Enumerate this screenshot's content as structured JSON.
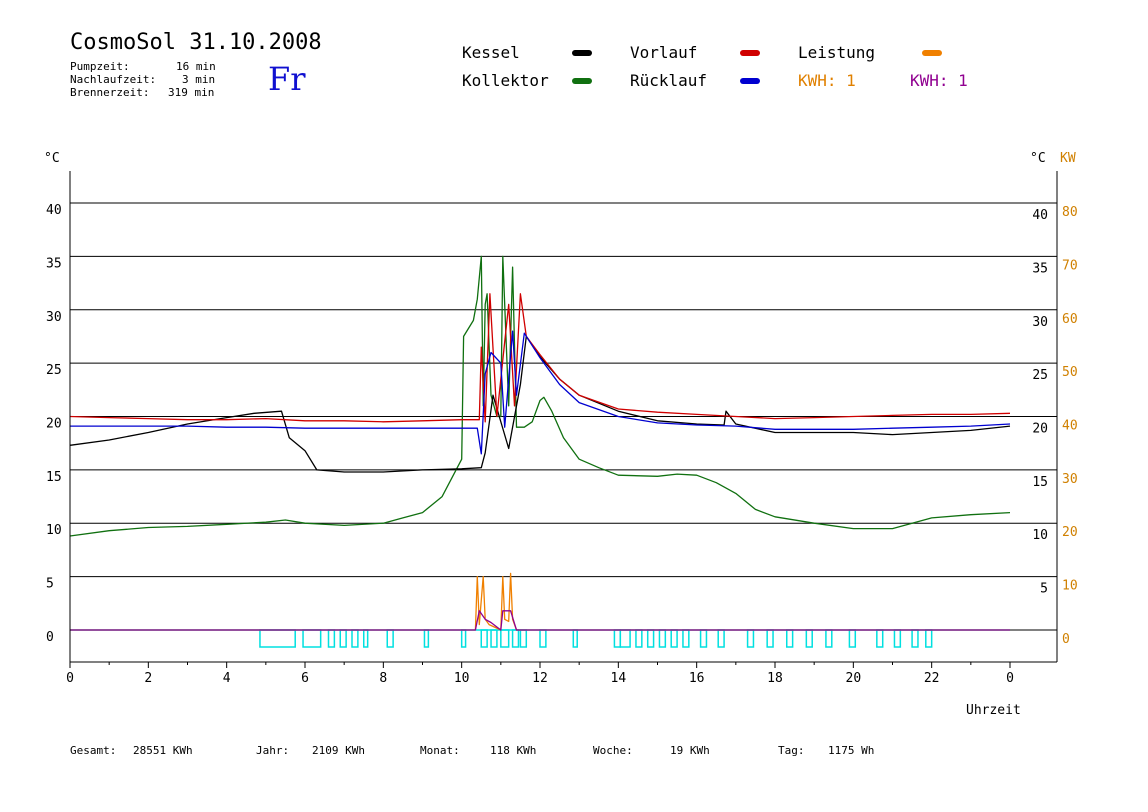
{
  "header": {
    "title": "CosmoSol 31.10.2008",
    "day": "Fr",
    "info": [
      {
        "label": "Pumpzeit:",
        "value": "16 min"
      },
      {
        "label": "Nachlaufzeit:",
        "value": "3 min"
      },
      {
        "label": "Brennerzeit:",
        "value": "319 min"
      }
    ]
  },
  "legend": {
    "kessel": "Kessel",
    "kollektor": "Kollektor",
    "vorlauf": "Vorlauf",
    "ruecklauf": "Rücklauf",
    "leistung": "Leistung",
    "kwh1": "KWH: 1",
    "kwh2": "KWH: 1"
  },
  "colors": {
    "kessel": "#000000",
    "kollektor": "#107010",
    "vorlauf": "#d00000",
    "ruecklauf": "#0000d0",
    "leistung": "#f08000",
    "kwh2": "#900090",
    "pump": "#00e0e0",
    "kw_axis": "#d08000"
  },
  "footer": [
    {
      "label": "Gesamt:",
      "value": "28551 KWh"
    },
    {
      "label": "Jahr:",
      "value": "2109 KWh"
    },
    {
      "label": "Monat:",
      "value": "118 KWh"
    },
    {
      "label": "Woche:",
      "value": "19 KWh"
    },
    {
      "label": "Tag:",
      "value": "1175 Wh"
    }
  ],
  "chart_data": {
    "type": "line",
    "xlabel": "Uhrzeit",
    "ylabel_left": "°C",
    "ylabel_right": "°C",
    "ylabel_right2": "KW",
    "xlim": [
      0,
      24
    ],
    "ylim": [
      -3,
      43
    ],
    "x_ticks": [
      "0",
      "2",
      "4",
      "6",
      "8",
      "10",
      "12",
      "14",
      "16",
      "18",
      "20",
      "22",
      "0"
    ],
    "y_ticks_left": [
      0,
      5,
      10,
      15,
      20,
      25,
      30,
      35,
      40
    ],
    "y_ticks_right": [
      5,
      10,
      15,
      20,
      25,
      30,
      35,
      40
    ],
    "y_ticks_kw": [
      0,
      10,
      20,
      30,
      40,
      50,
      60,
      70,
      80
    ],
    "grid": true,
    "series": [
      {
        "name": "Kessel",
        "key": "kessel",
        "points": [
          [
            0,
            17.3
          ],
          [
            1,
            17.8
          ],
          [
            2,
            18.5
          ],
          [
            3,
            19.3
          ],
          [
            4,
            19.9
          ],
          [
            4.7,
            20.3
          ],
          [
            5.4,
            20.5
          ],
          [
            5.6,
            18.0
          ],
          [
            6.0,
            16.8
          ],
          [
            6.3,
            15.0
          ],
          [
            7,
            14.8
          ],
          [
            8,
            14.8
          ],
          [
            9,
            15.0
          ],
          [
            10,
            15.1
          ],
          [
            10.5,
            15.2
          ],
          [
            10.6,
            16.6
          ],
          [
            10.8,
            22.0
          ],
          [
            11.2,
            17.0
          ],
          [
            11.5,
            23.0
          ],
          [
            11.65,
            27.5
          ],
          [
            12,
            25.6
          ],
          [
            12.5,
            23.5
          ],
          [
            13,
            22.0
          ],
          [
            14,
            20.5
          ],
          [
            15,
            19.6
          ],
          [
            16,
            19.3
          ],
          [
            16.7,
            19.2
          ],
          [
            16.75,
            20.5
          ],
          [
            17,
            19.3
          ],
          [
            18,
            18.5
          ],
          [
            19,
            18.5
          ],
          [
            20,
            18.5
          ],
          [
            21,
            18.3
          ],
          [
            22,
            18.5
          ],
          [
            23,
            18.7
          ],
          [
            24,
            19.1
          ]
        ]
      },
      {
        "name": "Vorlauf",
        "key": "vorlauf",
        "points": [
          [
            0,
            20.0
          ],
          [
            1,
            19.9
          ],
          [
            2,
            19.8
          ],
          [
            3,
            19.7
          ],
          [
            4,
            19.7
          ],
          [
            5,
            19.8
          ],
          [
            6,
            19.6
          ],
          [
            7,
            19.6
          ],
          [
            8,
            19.5
          ],
          [
            9,
            19.6
          ],
          [
            10,
            19.7
          ],
          [
            10.45,
            19.7
          ],
          [
            10.5,
            26.5
          ],
          [
            10.6,
            19.5
          ],
          [
            10.72,
            31.5
          ],
          [
            10.9,
            20.0
          ],
          [
            11.1,
            27.0
          ],
          [
            11.2,
            30.5
          ],
          [
            11.35,
            21.0
          ],
          [
            11.5,
            31.5
          ],
          [
            11.65,
            27.5
          ],
          [
            12,
            25.8
          ],
          [
            12.5,
            23.5
          ],
          [
            13,
            22.0
          ],
          [
            14,
            20.7
          ],
          [
            15,
            20.4
          ],
          [
            16,
            20.2
          ],
          [
            17,
            20.0
          ],
          [
            18,
            19.8
          ],
          [
            19,
            19.9
          ],
          [
            20,
            20.0
          ],
          [
            21,
            20.1
          ],
          [
            22,
            20.2
          ],
          [
            23,
            20.2
          ],
          [
            24,
            20.3
          ]
        ]
      },
      {
        "name": "Rücklauf",
        "key": "ruecklauf",
        "points": [
          [
            0,
            19.1
          ],
          [
            1,
            19.1
          ],
          [
            2,
            19.1
          ],
          [
            3,
            19.1
          ],
          [
            4,
            19.0
          ],
          [
            5,
            19.0
          ],
          [
            6,
            18.9
          ],
          [
            7,
            18.9
          ],
          [
            8,
            18.9
          ],
          [
            9,
            18.9
          ],
          [
            10,
            18.9
          ],
          [
            10.4,
            18.9
          ],
          [
            10.5,
            16.5
          ],
          [
            10.6,
            24.0
          ],
          [
            10.75,
            26.0
          ],
          [
            11.0,
            25.0
          ],
          [
            11.1,
            19.0
          ],
          [
            11.3,
            28.0
          ],
          [
            11.4,
            22.0
          ],
          [
            11.6,
            27.8
          ],
          [
            12,
            25.5
          ],
          [
            12.5,
            23.0
          ],
          [
            13,
            21.3
          ],
          [
            14,
            20.0
          ],
          [
            15,
            19.4
          ],
          [
            16,
            19.2
          ],
          [
            17,
            19.1
          ],
          [
            18,
            18.8
          ],
          [
            19,
            18.8
          ],
          [
            20,
            18.8
          ],
          [
            21,
            18.9
          ],
          [
            22,
            19.0
          ],
          [
            23,
            19.1
          ],
          [
            24,
            19.3
          ]
        ]
      },
      {
        "name": "Kollektor",
        "key": "kollektor",
        "points": [
          [
            0,
            8.8
          ],
          [
            1,
            9.3
          ],
          [
            2,
            9.6
          ],
          [
            3,
            9.7
          ],
          [
            4,
            9.9
          ],
          [
            5,
            10.1
          ],
          [
            5.5,
            10.3
          ],
          [
            6,
            10.0
          ],
          [
            7,
            9.8
          ],
          [
            8,
            10.0
          ],
          [
            8.5,
            10.5
          ],
          [
            9,
            11.0
          ],
          [
            9.5,
            12.5
          ],
          [
            10,
            16.0
          ],
          [
            10.05,
            27.5
          ],
          [
            10.3,
            29.0
          ],
          [
            10.4,
            31.0
          ],
          [
            10.5,
            35.0
          ],
          [
            10.55,
            21.0
          ],
          [
            10.6,
            30.5
          ],
          [
            10.65,
            31.5
          ],
          [
            10.75,
            22.0
          ],
          [
            10.9,
            20.0
          ],
          [
            11.0,
            20.0
          ],
          [
            11.05,
            35.0
          ],
          [
            11.2,
            21.0
          ],
          [
            11.3,
            34.0
          ],
          [
            11.4,
            19.0
          ],
          [
            11.6,
            19.0
          ],
          [
            11.8,
            19.5
          ],
          [
            12.0,
            21.5
          ],
          [
            12.1,
            21.8
          ],
          [
            12.3,
            20.5
          ],
          [
            12.6,
            18.0
          ],
          [
            13,
            16.0
          ],
          [
            13.5,
            15.2
          ],
          [
            14,
            14.5
          ],
          [
            15,
            14.4
          ],
          [
            15.5,
            14.6
          ],
          [
            16,
            14.5
          ],
          [
            16.5,
            13.8
          ],
          [
            17,
            12.8
          ],
          [
            17.5,
            11.3
          ],
          [
            18,
            10.6
          ],
          [
            19,
            10.0
          ],
          [
            20,
            9.5
          ],
          [
            21,
            9.5
          ],
          [
            22,
            10.5
          ],
          [
            23,
            10.8
          ],
          [
            24,
            11.0
          ]
        ]
      },
      {
        "name": "Leistung",
        "key": "leistung",
        "points": [
          [
            0,
            0
          ],
          [
            10.35,
            0
          ],
          [
            10.4,
            5.0
          ],
          [
            10.45,
            0.5
          ],
          [
            10.55,
            5.0
          ],
          [
            10.6,
            1.0
          ],
          [
            10.7,
            0.5
          ],
          [
            11.0,
            0
          ],
          [
            11.05,
            5.0
          ],
          [
            11.1,
            1.0
          ],
          [
            11.2,
            0.8
          ],
          [
            11.25,
            5.3
          ],
          [
            11.3,
            1.0
          ],
          [
            11.4,
            0
          ],
          [
            24,
            0
          ]
        ]
      },
      {
        "name": "KWH",
        "key": "kwh2",
        "points": [
          [
            0,
            0
          ],
          [
            10.35,
            0
          ],
          [
            10.45,
            1.8
          ],
          [
            10.6,
            1.0
          ],
          [
            10.75,
            0.7
          ],
          [
            11.0,
            0
          ],
          [
            11.05,
            1.8
          ],
          [
            11.25,
            1.8
          ],
          [
            11.35,
            0.6
          ],
          [
            11.4,
            0
          ],
          [
            24,
            0
          ]
        ]
      }
    ],
    "pump_blocks": [
      [
        4.85,
        5.75
      ],
      [
        5.95,
        6.4
      ],
      [
        6.6,
        6.75
      ],
      [
        6.9,
        7.05
      ],
      [
        7.2,
        7.35
      ],
      [
        7.5,
        7.6
      ],
      [
        8.1,
        8.25
      ],
      [
        9.05,
        9.15
      ],
      [
        10.0,
        10.1
      ],
      [
        10.5,
        10.65
      ],
      [
        10.75,
        10.9
      ],
      [
        11.0,
        11.2
      ],
      [
        11.3,
        11.45
      ],
      [
        11.5,
        11.65
      ],
      [
        12.0,
        12.15
      ],
      [
        12.85,
        12.95
      ],
      [
        13.9,
        14.05
      ],
      [
        14.05,
        14.3
      ],
      [
        14.45,
        14.6
      ],
      [
        14.75,
        14.9
      ],
      [
        15.05,
        15.2
      ],
      [
        15.35,
        15.5
      ],
      [
        15.65,
        15.8
      ],
      [
        16.1,
        16.25
      ],
      [
        16.55,
        16.7
      ],
      [
        17.3,
        17.45
      ],
      [
        17.8,
        17.95
      ],
      [
        18.3,
        18.45
      ],
      [
        18.8,
        18.95
      ],
      [
        19.3,
        19.45
      ],
      [
        19.9,
        20.05
      ],
      [
        20.6,
        20.75
      ],
      [
        21.05,
        21.2
      ],
      [
        21.5,
        21.65
      ],
      [
        21.85,
        22.0
      ]
    ]
  }
}
